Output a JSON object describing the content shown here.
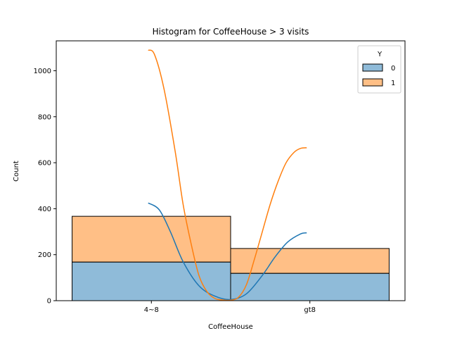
{
  "chart_data": {
    "type": "bar",
    "title": "Histogram for CoffeeHouse > 3 visits",
    "xlabel": "CoffeeHouse",
    "ylabel": "Count",
    "categories": [
      "4~8",
      "gt8"
    ],
    "stacked": true,
    "ylim": [
      0,
      1130
    ],
    "yticks": [
      0,
      200,
      400,
      600,
      800,
      1000
    ],
    "grid": false,
    "legend": {
      "title": "Y",
      "placement": "top-right"
    },
    "series": [
      {
        "name": "0",
        "values": [
          168,
          119
        ],
        "color": "#1f77b4"
      },
      {
        "name": "1",
        "values": [
          199,
          108
        ],
        "color": "#ff7f0e"
      }
    ],
    "kde": [
      {
        "series": "0",
        "color": "#1f77b4",
        "points": [
          [
            -0.02,
            425
          ],
          [
            0.05,
            395
          ],
          [
            0.12,
            300
          ],
          [
            0.2,
            170
          ],
          [
            0.3,
            65
          ],
          [
            0.4,
            20
          ],
          [
            0.5,
            5
          ],
          [
            0.6,
            30
          ],
          [
            0.7,
            110
          ],
          [
            0.78,
            190
          ],
          [
            0.86,
            255
          ],
          [
            0.94,
            290
          ],
          [
            0.98,
            295
          ]
        ]
      },
      {
        "series": "1",
        "color": "#ff7f0e",
        "points": [
          [
            -0.02,
            1090
          ],
          [
            0.02,
            1070
          ],
          [
            0.08,
            920
          ],
          [
            0.15,
            650
          ],
          [
            0.2,
            420
          ],
          [
            0.25,
            250
          ],
          [
            0.3,
            110
          ],
          [
            0.35,
            40
          ],
          [
            0.4,
            10
          ],
          [
            0.45,
            3
          ],
          [
            0.5,
            2
          ],
          [
            0.55,
            15
          ],
          [
            0.6,
            70
          ],
          [
            0.65,
            180
          ],
          [
            0.7,
            300
          ],
          [
            0.75,
            420
          ],
          [
            0.8,
            520
          ],
          [
            0.85,
            600
          ],
          [
            0.9,
            645
          ],
          [
            0.94,
            662
          ],
          [
            0.98,
            665
          ]
        ]
      }
    ]
  }
}
